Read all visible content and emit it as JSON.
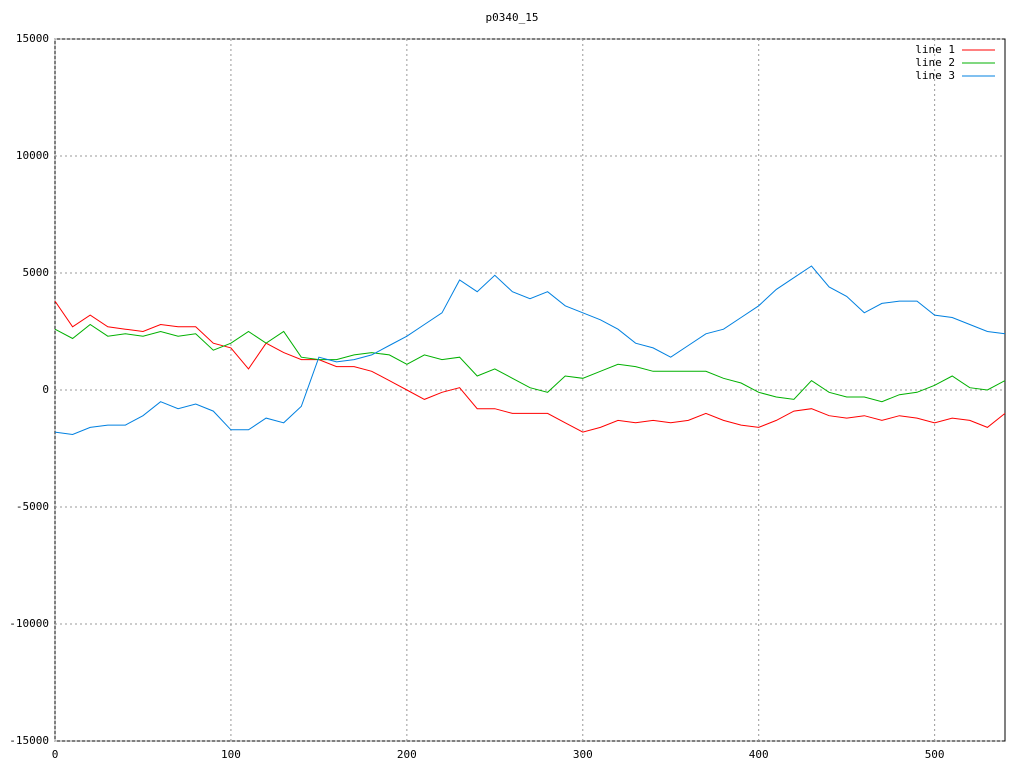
{
  "chart_data": {
    "type": "line",
    "title": "p0340_15",
    "x": [
      0,
      10,
      20,
      30,
      40,
      50,
      60,
      70,
      80,
      90,
      100,
      110,
      120,
      130,
      140,
      150,
      160,
      170,
      180,
      190,
      200,
      210,
      220,
      230,
      240,
      250,
      260,
      270,
      280,
      290,
      300,
      310,
      320,
      330,
      340,
      350,
      360,
      370,
      380,
      390,
      400,
      410,
      420,
      430,
      440,
      450,
      460,
      470,
      480,
      490,
      500,
      510,
      520,
      530,
      540
    ],
    "series": [
      {
        "name": "line 1",
        "color": "#ff0000",
        "values": [
          3800,
          2700,
          3200,
          2700,
          2600,
          2500,
          2800,
          2700,
          2700,
          2000,
          1800,
          900,
          2000,
          1600,
          1300,
          1300,
          1000,
          1000,
          800,
          400,
          0,
          -400,
          -100,
          100,
          -800,
          -800,
          -1000,
          -1000,
          -1000,
          -1400,
          -1800,
          -1600,
          -1300,
          -1400,
          -1300,
          -1400,
          -1300,
          -1000,
          -1300,
          -1500,
          -1600,
          -1300,
          -900,
          -800,
          -1100,
          -1200,
          -1100,
          -1300,
          -1100,
          -1200,
          -1400,
          -1200,
          -1300,
          -1600,
          -1000
        ]
      },
      {
        "name": "line 2",
        "color": "#00b000",
        "values": [
          2600,
          2200,
          2800,
          2300,
          2400,
          2300,
          2500,
          2300,
          2400,
          1700,
          2000,
          2500,
          2000,
          2500,
          1400,
          1300,
          1300,
          1500,
          1600,
          1500,
          1100,
          1500,
          1300,
          1400,
          600,
          900,
          500,
          100,
          -100,
          600,
          500,
          800,
          1100,
          1000,
          800,
          800,
          800,
          800,
          500,
          300,
          -100,
          -300,
          -400,
          400,
          -100,
          -300,
          -300,
          -500,
          -200,
          -100,
          200,
          600,
          100,
          0,
          400
        ]
      },
      {
        "name": "line 3",
        "color": "#0080e0",
        "values": [
          -1800,
          -1900,
          -1600,
          -1500,
          -1500,
          -1100,
          -500,
          -800,
          -600,
          -900,
          -1700,
          -1700,
          -1200,
          -1400,
          -700,
          1400,
          1200,
          1300,
          1500,
          1900,
          2300,
          2800,
          3300,
          4700,
          4200,
          4900,
          4200,
          3900,
          4200,
          3600,
          3300,
          3000,
          2600,
          2000,
          1800,
          1400,
          1900,
          2400,
          2600,
          3100,
          3600,
          4300,
          4800,
          5300,
          4400,
          4000,
          3300,
          3700,
          3800,
          3800,
          3200,
          3100,
          2800,
          2500,
          2400
        ]
      }
    ],
    "xlim": [
      0,
      540
    ],
    "xticks": [
      0,
      100,
      200,
      300,
      400,
      500
    ],
    "ylim": [
      -15000,
      15000
    ],
    "yticks": [
      -15000,
      -10000,
      -5000,
      0,
      5000,
      10000,
      15000
    ],
    "grid": true,
    "legend": "top-right"
  }
}
